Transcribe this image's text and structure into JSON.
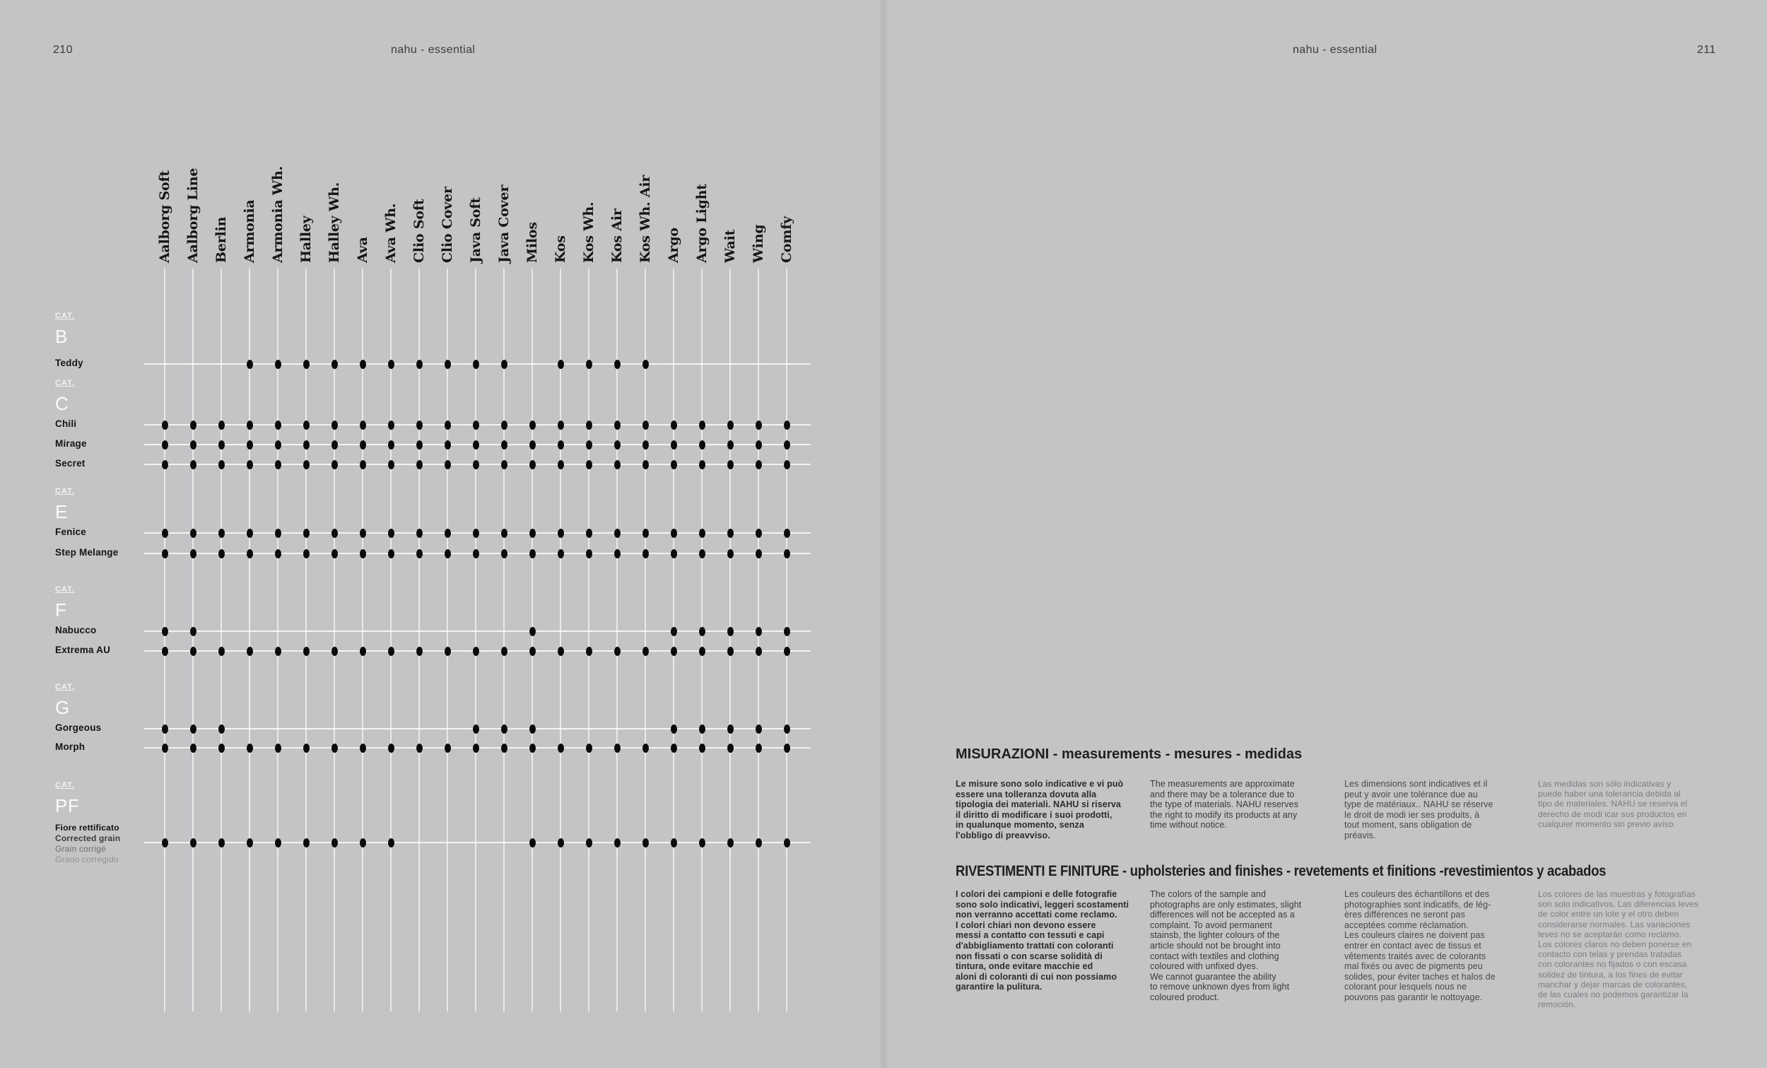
{
  "page": {
    "left_page_number": "210",
    "left_running_title": "nahu - essential",
    "right_running_title": "nahu - essential",
    "right_page_number": "211"
  },
  "colors": {
    "background": "#c3c4c6",
    "dot": "#0b0b0b",
    "grid_line": "#ffffff",
    "category_text": "#f4f4f4",
    "row_label_text": "#141414"
  },
  "matrix": {
    "category_label": "CAT.",
    "columns": [
      "Aalborg Soft",
      "Aalborg Line",
      "Berlin",
      "Armonia",
      "Armonia Wh.",
      "Halley",
      "Halley Wh.",
      "Ava",
      "Ava Wh.",
      "Clio Soft",
      "Clio Cover",
      "Java Soft",
      "Java Cover",
      "Milos",
      "Kos",
      "Kos Wh.",
      "Kos Air",
      "Kos Wh. Air",
      "Argo",
      "Argo Light",
      "Wait",
      "Wing",
      "Comfy"
    ],
    "groups": [
      {
        "letter": "B",
        "rows": [
          {
            "label": "Teddy",
            "dots": [
              3,
              4,
              5,
              6,
              7,
              8,
              9,
              10,
              11,
              12,
              14,
              15,
              16,
              17
            ]
          }
        ]
      },
      {
        "letter": "C",
        "rows": [
          {
            "label": "Chili",
            "dots": "all"
          },
          {
            "label": "Mirage",
            "dots": "all"
          },
          {
            "label": "Secret",
            "dots": "all"
          }
        ]
      },
      {
        "letter": "E",
        "rows": [
          {
            "label": "Fenice",
            "dots": "all"
          },
          {
            "label": "Step Melange",
            "dots": "all"
          }
        ]
      },
      {
        "letter": "F",
        "rows": [
          {
            "label": "Nabucco",
            "dots": [
              0,
              1,
              13,
              18,
              19,
              20,
              21,
              22
            ]
          },
          {
            "label": "Extrema AU",
            "dots": "all"
          }
        ]
      },
      {
        "letter": "G",
        "rows": [
          {
            "label": "Gorgeous",
            "dots": [
              0,
              1,
              2,
              11,
              12,
              13,
              18,
              19,
              20,
              21,
              22
            ]
          },
          {
            "label": "Morph",
            "dots": "all"
          }
        ]
      },
      {
        "letter": "PF",
        "rows": [
          {
            "label_lines": [
              "Fiore rettificato",
              "Corrected grain",
              "Grain corrigé",
              "Grano corregido"
            ],
            "dots": [
              0,
              1,
              2,
              3,
              4,
              5,
              6,
              7,
              8,
              13,
              14,
              15,
              16,
              17,
              18,
              19,
              20,
              21,
              22
            ]
          }
        ]
      }
    ]
  },
  "info_sections": [
    {
      "title": "MISURAZIONI - measurements - mesures - medidas",
      "columns": [
        "Le misure sono solo indicative e vi può\nessere una tolleranza dovuta alla\ntipologia dei materiali. NAHU si riserva\nil diritto di modificare i suoi prodotti,\nin qualunque momento, senza\nl'obbligo di preavviso.",
        "The measurements are approximate\nand there may be a tolerance due to\nthe type of materials. NAHU reserves\nthe right to modify its products at any\ntime without notice.",
        "Les dimensions sont indicatives et il\npeut y avoir une tolérance due au\ntype de matériaux.. NAHU se réserve\nle droit de modi ier ses produits, à\ntout moment, sans obligation de\npréavis.",
        "Las medidas son sólo indicativas y\npuede haber una tolerancia debida al\ntipo de materiales. NAHU se reserva el\nderecho de modi icar sus productos en\ncualquier momento sin previo aviso."
      ]
    },
    {
      "title": "RIVESTIMENTI E FINITURE - upholsteries and finishes - revetements et finitions -revestimientos y acabados",
      "columns": [
        "I colori dei campioni e delle fotografie\nsono solo indicativi, leggeri scostamenti\nnon verranno accettati come reclamo.\nI colori chiari non devono essere\nmessi a contatto con tessuti e capi\nd'abbigliamento trattati con coloranti\nnon fissati o con scarse solidità di\ntintura, onde evitare macchie ed\naloni di coloranti di cui non possiamo\ngarantire la pulitura.",
        "The colors of the sample and\nphotographs are only estimates, slight\ndifferences will not be accepted as a\ncomplaint. To avoid permanent\nstainsb, the lighter colours of the\narticle should not be brought into\ncontact with textiles and clothing\ncoloured with unfixed dyes.\nWe cannot guarantee the ability\nto remove unknown dyes from light\ncoloured product.",
        "Les couleurs des échantillons et des\nphotographies sont indicatifs, de lég-\nères différences ne seront pas\nacceptées comme réclamation.\nLes couleurs claires ne doivent pas\nentrer en contact avec de tissus et\nvêtements traités avec de colorants\nmal fixés ou avec de pigments peu\nsolides, pour éviter taches et halos de\ncolorant pour lesquels nous ne\npouvons pas garantir le nottoyage.",
        "Los colores de las muestras y fotografías\nson solo indicativos. Las diferencias leves\nde color entre un lote y el otro deben\nconsiderarse normales. Las variaciones\nleves no se aceptarán como reclamo.\nLos colores claros no deben ponerse en\ncontacto con telas y prendas tratadas\ncon colorantes no fijados o con escasa\nsolidez de tintura, a los fines de evitar\nmanchar y dejar marcas de colorantes,\nde las cuales no podemos garantizar la\nremoción."
      ]
    }
  ]
}
